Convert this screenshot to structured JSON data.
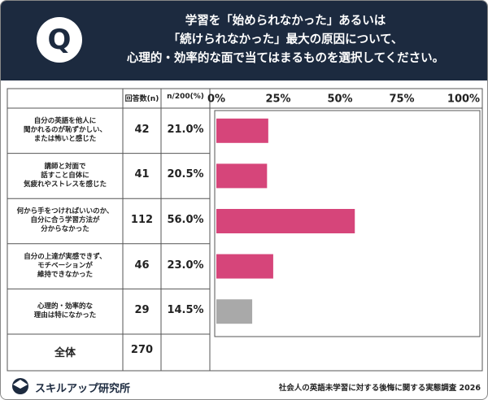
{
  "chart_data": {
    "type": "bar",
    "orientation": "horizontal",
    "icon": "Q",
    "title": "学習を「始められなかった」あるいは\n「続けられなかった」最大の原因について、\n心理的・効率的な面で当てはまるものを選択してください。",
    "count_header": "回答数(n)",
    "percent_header": "n/200(%)",
    "categories": [
      "自分の英語を他人に\n聞かれるのが恥ずかしい、\nまたは怖いと感じた",
      "講師と対面で\n話すこと自体に\n気疲れやストレスを感じた",
      "何から手をつければいいのか、\n自分に合う学習方法が\n分からなかった",
      "自分の上達が実感できず、\nモチベーションが\n維持できなかった",
      "心理的・効率的な\n理由は特になかった"
    ],
    "counts": [
      42,
      41,
      112,
      46,
      29
    ],
    "values": [
      21.0,
      20.5,
      56.0,
      23.0,
      14.5
    ],
    "value_labels": [
      "21.0%",
      "20.5%",
      "56.0%",
      "23.0%",
      "14.5%"
    ],
    "colors": [
      "#d6457a",
      "#d6457a",
      "#d6457a",
      "#d6457a",
      "#a9a9a9"
    ],
    "total_label": "全体",
    "total": 270,
    "xlim": [
      0,
      100
    ],
    "xticks": [
      {
        "value": 0,
        "label": "0%"
      },
      {
        "value": 25,
        "label": "25%"
      },
      {
        "value": 50,
        "label": "50%"
      },
      {
        "value": 75,
        "label": "75%"
      },
      {
        "value": 100,
        "label": "100%"
      }
    ],
    "grid": false,
    "brand": "スキルアップ研究所",
    "source": "社会人の英語未学習に対する後悔に関する実態調査 2026"
  }
}
